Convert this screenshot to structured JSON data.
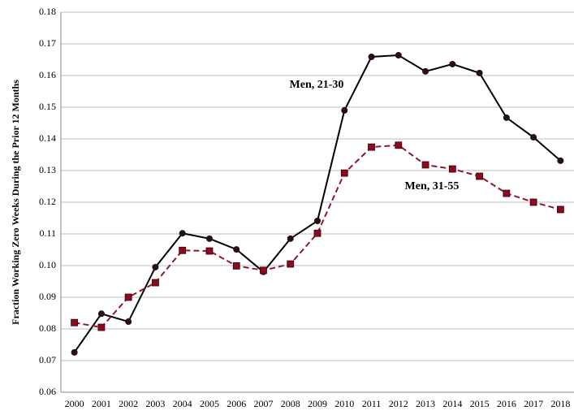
{
  "chart_data": {
    "type": "line",
    "y_label": "Fraction Working Zero Weeks During the Prior 12 Months",
    "categories": [
      "2000",
      "2001",
      "2002",
      "2003",
      "2004",
      "2005",
      "2006",
      "2007",
      "2008",
      "2009",
      "2010",
      "2011",
      "2012",
      "2013",
      "2014",
      "2015",
      "2016",
      "2017",
      "2018"
    ],
    "series": [
      {
        "name": "Men, 21-30",
        "color": "#000000",
        "marker": "circle",
        "marker_color": "#2a0f12",
        "dashed": false,
        "values": [
          0.0726,
          0.0848,
          0.0823,
          0.0995,
          0.1102,
          0.1085,
          0.1051,
          0.098,
          0.1085,
          0.1141,
          0.149,
          0.1659,
          0.1664,
          0.1613,
          0.1636,
          0.1608,
          0.1467,
          0.1405,
          0.1331
        ]
      },
      {
        "name": "Men, 31-55",
        "color": "#8b1a2a",
        "marker": "square",
        "marker_color": "#8b0a1f",
        "dashed": true,
        "values": [
          0.082,
          0.0805,
          0.09,
          0.0946,
          0.1048,
          0.1046,
          0.0999,
          0.0985,
          0.1005,
          0.1102,
          0.1292,
          0.1374,
          0.138,
          0.1318,
          0.1305,
          0.1282,
          0.1228,
          0.12,
          0.1177
        ]
      }
    ],
    "ylim": [
      0.06,
      0.18
    ],
    "yticks": [
      0.06,
      0.07,
      0.08,
      0.09,
      {
        "value": 0.1,
        "label": "0.10"
      },
      0.11,
      0.12,
      0.13,
      0.14,
      0.15,
      0.16,
      0.17,
      0.18
    ],
    "grid": true
  }
}
